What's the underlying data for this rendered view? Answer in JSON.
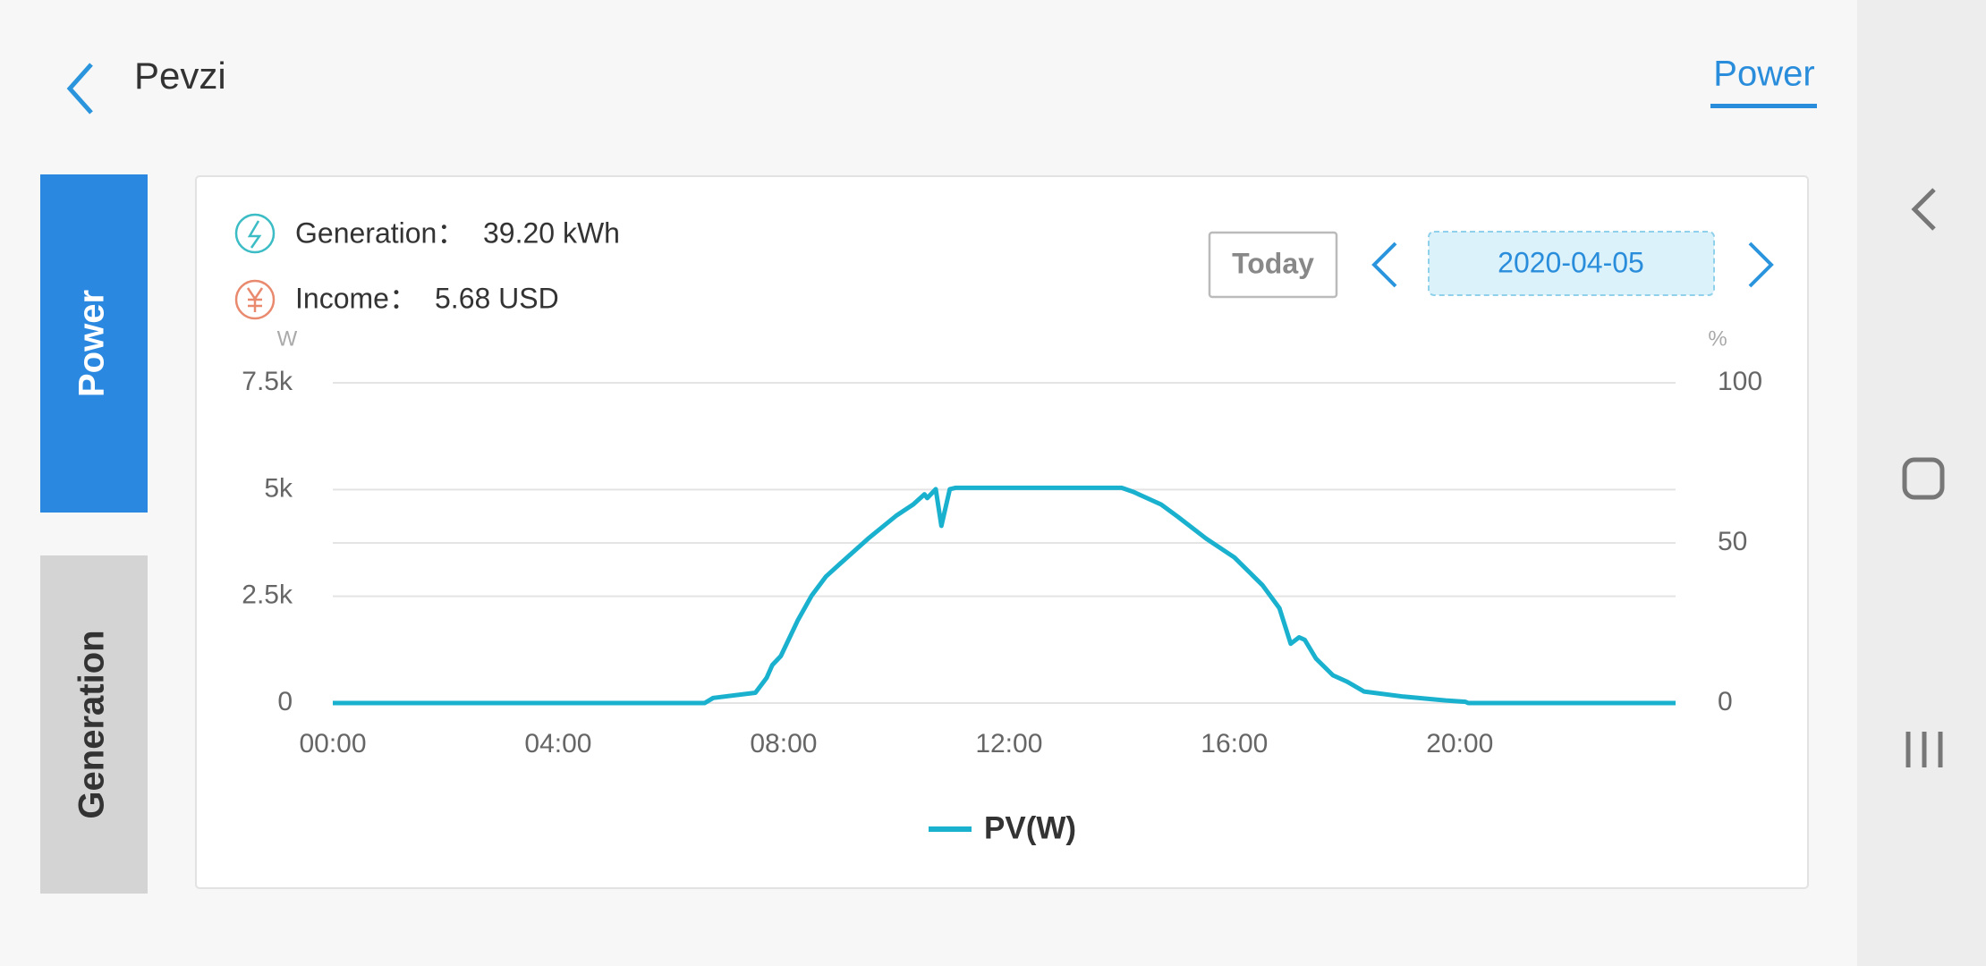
{
  "header": {
    "title": "Pevzi",
    "tab": "Power"
  },
  "side_tabs": [
    "Power",
    "Generation"
  ],
  "summary": {
    "generation": {
      "label": "Generation：",
      "value": "39.20 kWh"
    },
    "income": {
      "label": "Income：",
      "value": "5.68 USD"
    }
  },
  "date_controls": {
    "today": "Today",
    "date": "2020-04-05"
  },
  "chart_data": {
    "type": "line",
    "ylabel": "W",
    "y2label": "%",
    "x": [
      0,
      6.6,
      6.75,
      7.5,
      7.7,
      7.8,
      7.95,
      8.25,
      8.5,
      8.75,
      9.0,
      9.5,
      10.0,
      10.3,
      10.5,
      10.55,
      10.7,
      10.8,
      10.95,
      11.05,
      12,
      13,
      14,
      14.2,
      14.7,
      15,
      15.5,
      16,
      16.5,
      16.8,
      17.0,
      17.15,
      17.25,
      17.45,
      17.75,
      18,
      18.3,
      19,
      19.75,
      20.1,
      20.15,
      23.83
    ],
    "series": [
      {
        "name": "PV(W)",
        "color": "#1ab1cf",
        "values": [
          0,
          0,
          120,
          240,
          590,
          890,
          1100,
          1930,
          2520,
          2960,
          3260,
          3850,
          4390,
          4650,
          4890,
          4800,
          5010,
          4150,
          5010,
          5040,
          5040,
          5040,
          5040,
          4950,
          4650,
          4360,
          3850,
          3410,
          2760,
          2220,
          1390,
          1540,
          1480,
          1040,
          650,
          500,
          270,
          150,
          60,
          30,
          0,
          0
        ]
      }
    ],
    "xlim": [
      0,
      23.83
    ],
    "xticks": [
      {
        "value": 0,
        "label": "00:00"
      },
      {
        "value": 4,
        "label": "04:00"
      },
      {
        "value": 8,
        "label": "08:00"
      },
      {
        "value": 12,
        "label": "12:00"
      },
      {
        "value": 16,
        "label": "16:00"
      },
      {
        "value": 20,
        "label": "20:00"
      }
    ],
    "ylim": [
      0,
      7500
    ],
    "yticks": [
      0,
      {
        "value": 2500,
        "label": "2.5k"
      },
      {
        "value": 5000,
        "label": "5k"
      },
      {
        "value": 7500,
        "label": "7.5k"
      }
    ],
    "y2lim": [
      0,
      100
    ],
    "y2ticks": [
      0,
      50,
      100
    ],
    "grid": true
  }
}
